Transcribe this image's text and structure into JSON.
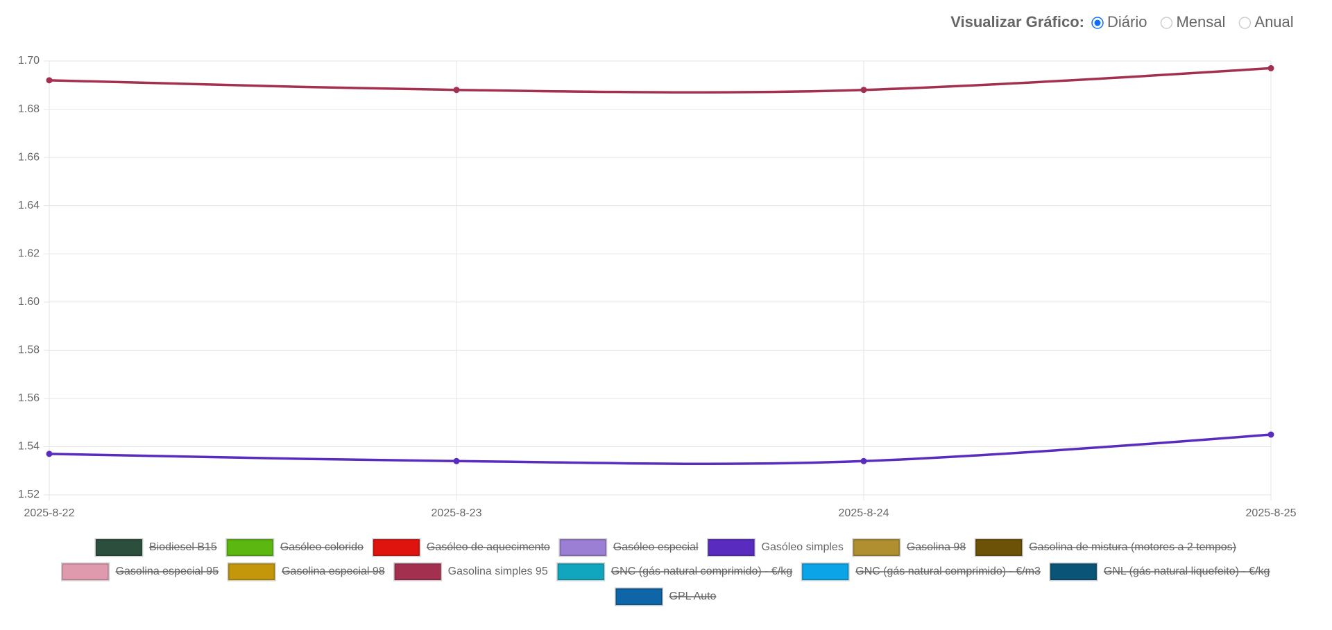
{
  "controls": {
    "label": "Visualizar Gráfico:",
    "options": [
      "Diário",
      "Mensal",
      "Anual"
    ],
    "selected": 0
  },
  "chart_data": {
    "type": "line",
    "categories": [
      "2025-8-22",
      "2025-8-23",
      "2025-8-24",
      "2025-8-25"
    ],
    "ylim": [
      1.52,
      1.7
    ],
    "yticks": [
      1.52,
      1.54,
      1.56,
      1.58,
      {
        "value": 1.6,
        "label": "1.60"
      },
      1.62,
      1.64,
      1.66,
      1.68,
      {
        "value": 1.7,
        "label": "1.70"
      }
    ],
    "grid": true,
    "series": [
      {
        "name": "Biodiesel B15",
        "color": "#2b4f3c",
        "hidden": true
      },
      {
        "name": "Gasóleo colorido",
        "color": "#5cb811",
        "hidden": true
      },
      {
        "name": "Gasóleo de aquecimento",
        "color": "#e0140f",
        "hidden": true
      },
      {
        "name": "Gasóleo especial",
        "color": "#9b7fd4",
        "hidden": true
      },
      {
        "name": "Gasóleo simples",
        "color": "#5a2bbf",
        "values": [
          1.537,
          1.534,
          1.534,
          1.545
        ]
      },
      {
        "name": "Gasolina 98",
        "color": "#b08f30",
        "hidden": true
      },
      {
        "name": "Gasolina de mistura (motores a 2 tempos)",
        "color": "#6b5206",
        "hidden": true
      },
      {
        "name": "Gasolina especial 95",
        "color": "#e09aae",
        "hidden": true
      },
      {
        "name": "Gasolina especial 98",
        "color": "#c4960a",
        "hidden": true
      },
      {
        "name": "Gasolina simples 95",
        "color": "#a3304f",
        "values": [
          1.692,
          1.688,
          1.688,
          1.697
        ]
      },
      {
        "name": "GNC (gás natural comprimido) - €/kg",
        "color": "#12a5be",
        "hidden": true
      },
      {
        "name": "GNC (gás natural comprimido) - €/m3",
        "color": "#0ba4e6",
        "hidden": true
      },
      {
        "name": "GNL (gás natural liquefeito) - €/kg",
        "color": "#0a5478",
        "hidden": true
      },
      {
        "name": "GPL Auto",
        "color": "#0e65a8",
        "hidden": true
      }
    ]
  }
}
